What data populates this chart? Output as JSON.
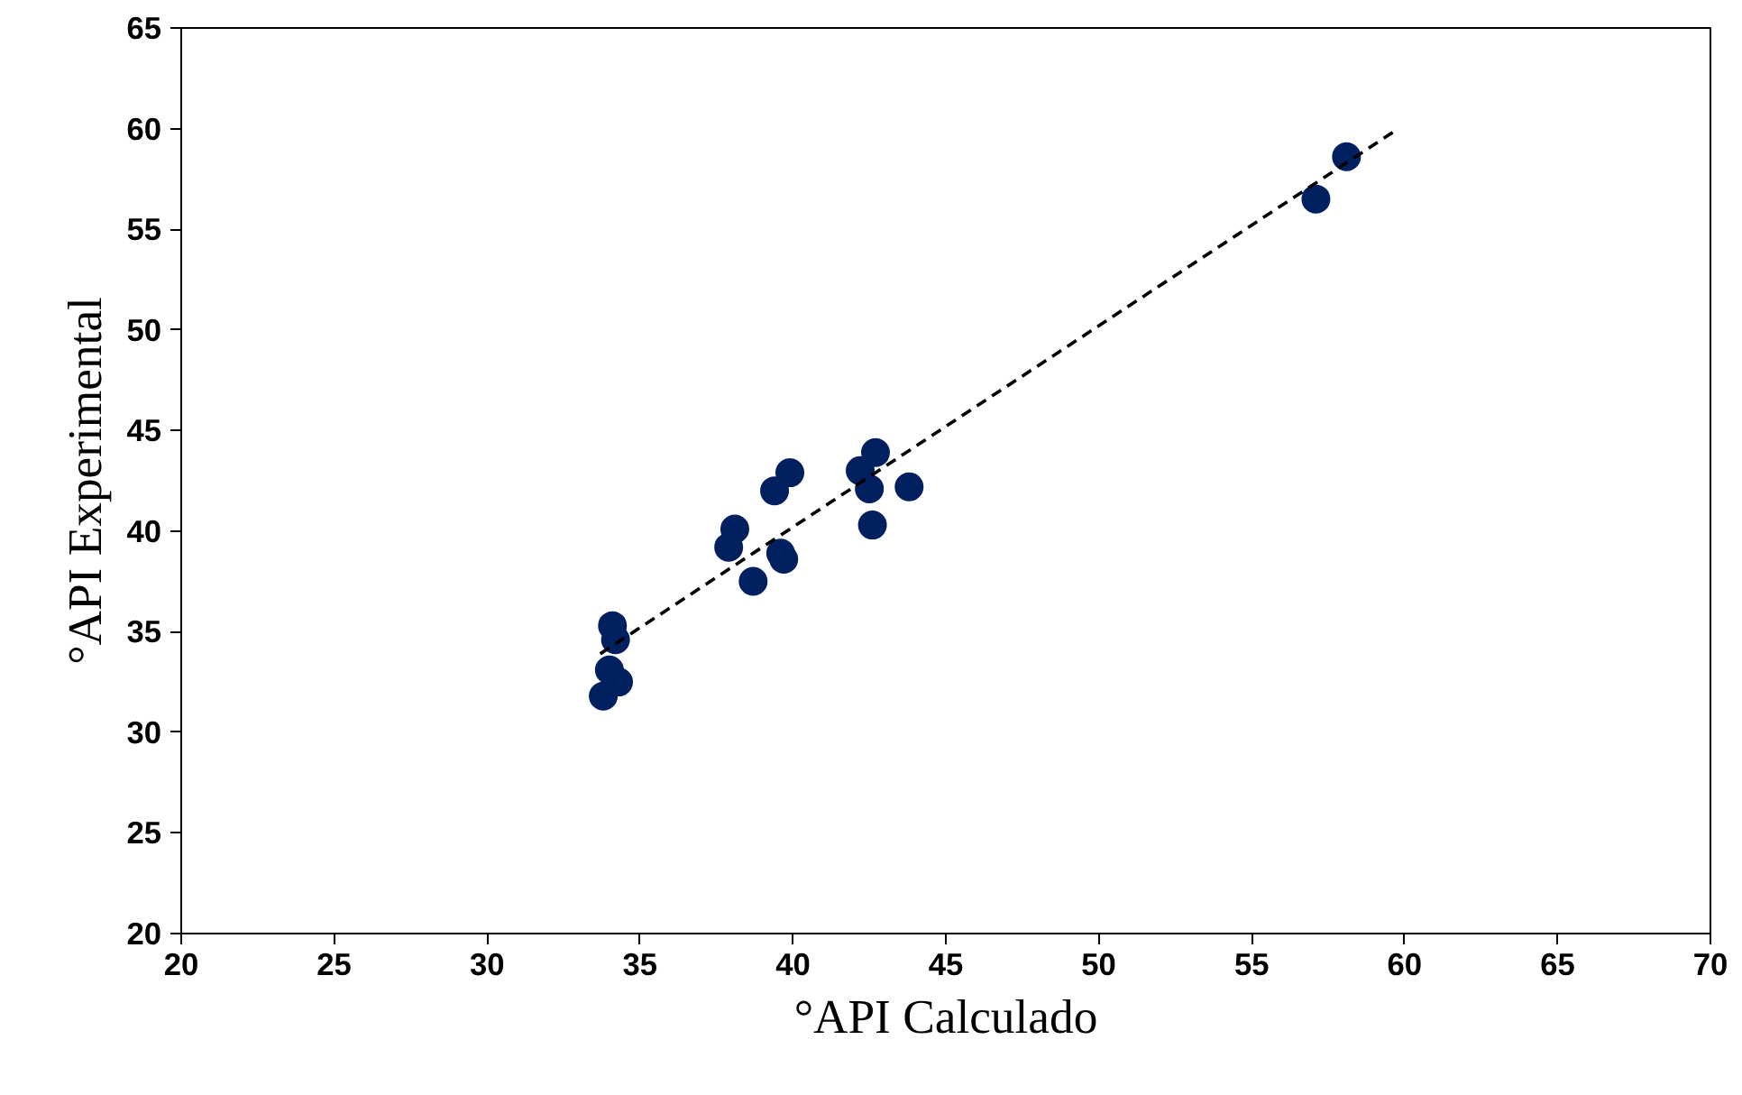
{
  "chart_data": {
    "type": "scatter",
    "xlabel": "°API Calculado",
    "ylabel": "°API Experimental",
    "xlim": [
      20,
      70
    ],
    "ylim": [
      20,
      65
    ],
    "xticks": [
      20,
      25,
      30,
      35,
      40,
      45,
      50,
      55,
      60,
      65,
      70
    ],
    "yticks": [
      20,
      25,
      30,
      35,
      40,
      45,
      50,
      55,
      60,
      65
    ],
    "grid": false,
    "series": [
      {
        "marker": "circle",
        "color": "#002060",
        "x": [
          34.1,
          34.2,
          34.0,
          34.3,
          33.8,
          38.1,
          37.9,
          38.7,
          39.4,
          39.9,
          39.6,
          39.7,
          42.2,
          42.7,
          42.5,
          42.6,
          43.8,
          57.1,
          58.1
        ],
        "values": [
          35.3,
          34.6,
          33.1,
          32.5,
          31.8,
          40.1,
          39.2,
          37.5,
          42.0,
          42.9,
          38.9,
          38.6,
          43.0,
          43.9,
          42.1,
          40.3,
          42.2,
          56.5,
          58.6
        ]
      },
      {
        "type": "line",
        "color": "#000000",
        "line_style": "dashed",
        "x": [
          33.7,
          59.8
        ],
        "values": [
          33.9,
          60.0
        ]
      }
    ]
  }
}
